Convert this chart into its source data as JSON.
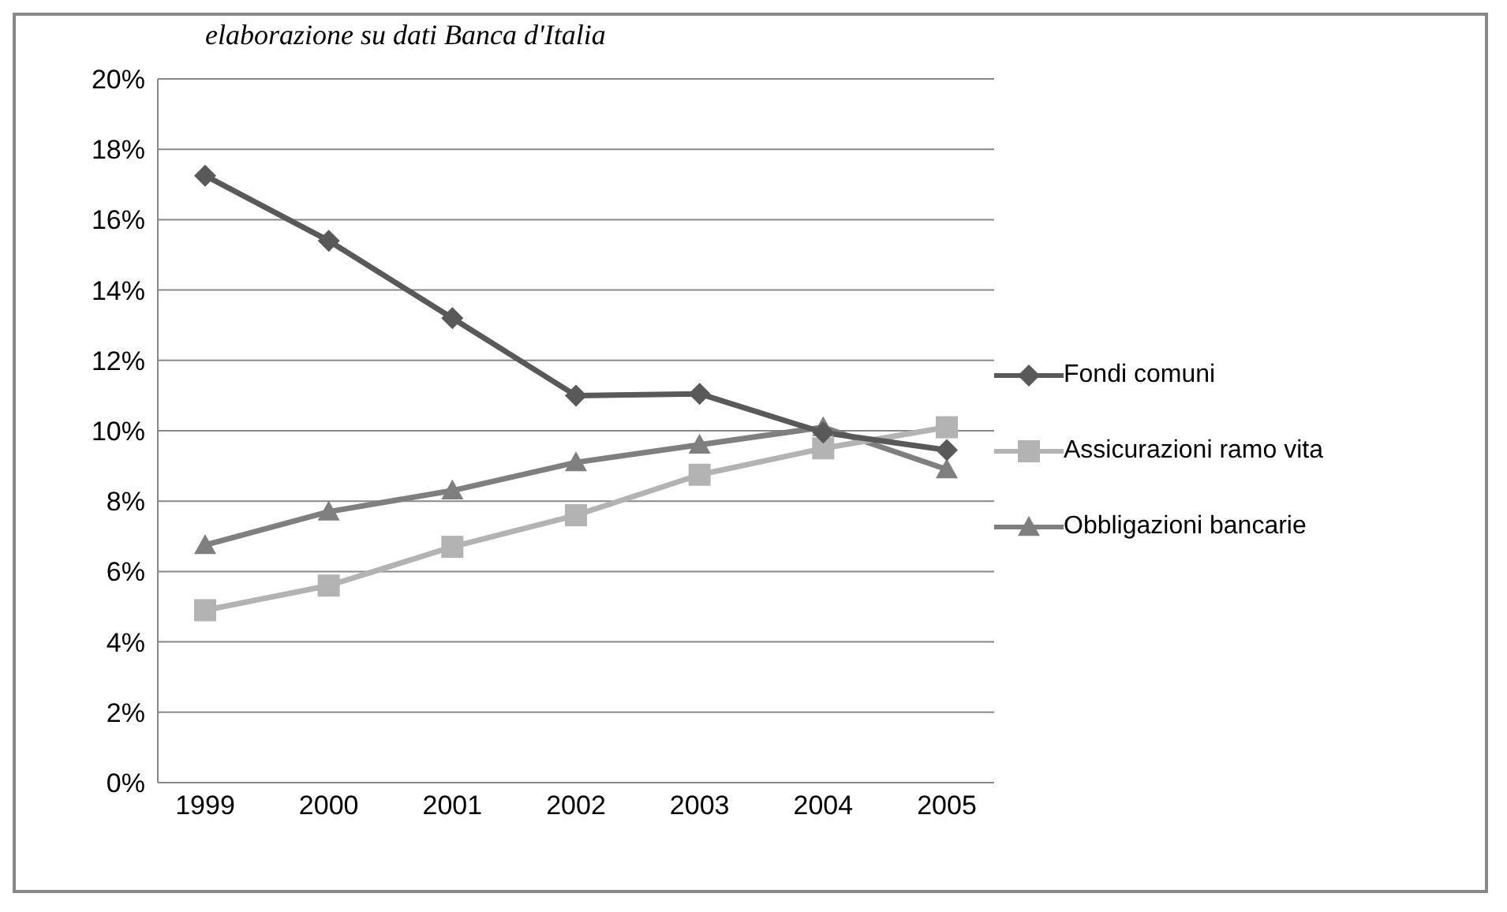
{
  "chart_data": {
    "type": "line",
    "annotations": [
      "elaborazione su dati Banca d'Italia"
    ],
    "categories": [
      "1999",
      "2000",
      "2001",
      "2002",
      "2003",
      "2004",
      "2005"
    ],
    "series": [
      {
        "name": "Fondi comuni",
        "color": "#595959",
        "marker": "diamond",
        "values": [
          17.25,
          15.4,
          13.2,
          11.0,
          11.05,
          9.95,
          9.45
        ]
      },
      {
        "name": "Assicurazioni ramo vita",
        "color": "#b3b3b3",
        "marker": "square",
        "values": [
          4.9,
          5.6,
          6.7,
          7.6,
          8.75,
          9.5,
          10.1
        ]
      },
      {
        "name": "Obbligazioni bancarie",
        "color": "#7f7f7f",
        "marker": "triangle",
        "values": [
          6.75,
          7.7,
          8.3,
          9.1,
          9.6,
          10.1,
          8.9
        ]
      }
    ],
    "ylim": [
      0,
      20
    ],
    "yticks": [
      {
        "value": 0,
        "label": "0%"
      },
      {
        "value": 2,
        "label": "2%"
      },
      {
        "value": 4,
        "label": "4%"
      },
      {
        "value": 6,
        "label": "6%"
      },
      {
        "value": 8,
        "label": "8%"
      },
      {
        "value": 10,
        "label": "10%"
      },
      {
        "value": 12,
        "label": "12%"
      },
      {
        "value": 14,
        "label": "14%"
      },
      {
        "value": 16,
        "label": "16%"
      },
      {
        "value": 18,
        "label": "18%"
      },
      {
        "value": 20,
        "label": "20%"
      }
    ],
    "grid": "y",
    "legend": "right",
    "line_style": "solid"
  }
}
